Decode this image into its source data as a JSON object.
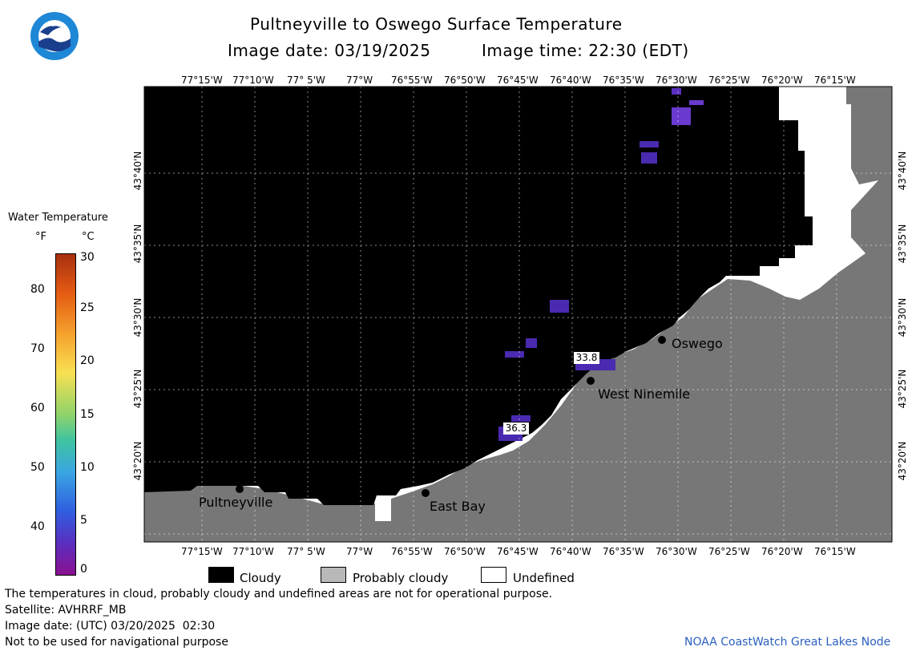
{
  "header": {
    "title": "Pultneyville to Oswego Surface Temperature",
    "image_date": "Image date: 03/19/2025",
    "image_time": "Image time: 22:30 (EDT)"
  },
  "logo": {
    "text": "NOAA",
    "colors": {
      "outer": "#1e88d6",
      "inner": "#ffffff",
      "bird": "#1a3f8c"
    }
  },
  "map": {
    "lon_ticks": [
      "77°15'W",
      "77°10'W",
      "77° 5'W",
      "77°W",
      "76°55'W",
      "76°50'W",
      "76°45'W",
      "76°40'W",
      "76°35'W",
      "76°30'W",
      "76°25'W",
      "76°20'W",
      "76°15'W"
    ],
    "lat_ticks": [
      "43°40'N",
      "43°35'N",
      "43°30'N",
      "43°25'N",
      "43°20'N"
    ],
    "places": [
      {
        "name": "Pultneyville"
      },
      {
        "name": "East Bay"
      },
      {
        "name": "West Ninemile"
      },
      {
        "name": "Oswego"
      }
    ],
    "temperature_labels": [
      "33.8",
      "36.3"
    ],
    "colors": {
      "cloudy": "#000000",
      "probably_cloudy": "#777777",
      "undefined": "#ffffff",
      "cold_water": "#5a2fc0"
    }
  },
  "colorbar": {
    "title": "Water Temperature",
    "unit_f": "°F",
    "unit_c": "°C",
    "f_ticks": [
      "80",
      "70",
      "60",
      "50",
      "40"
    ],
    "c_ticks": [
      "30",
      "25",
      "20",
      "15",
      "10",
      "5",
      "0"
    ]
  },
  "legend": {
    "items": [
      {
        "label": "Cloudy",
        "color": "#000000"
      },
      {
        "label": "Probably cloudy",
        "color": "#b8b8b8"
      },
      {
        "label": "Undefined",
        "color": "#ffffff"
      }
    ]
  },
  "footer": {
    "note": "The temperatures in cloud, probably cloudy and undefined areas are not for operational purpose.",
    "satellite": "Satellite: AVHRRF_MB",
    "utc_date": "Image date: (UTC) 03/20/2025  02:30",
    "nav_warning": "Not to be used for navigational purpose",
    "credit": "NOAA CoastWatch Great Lakes Node"
  }
}
